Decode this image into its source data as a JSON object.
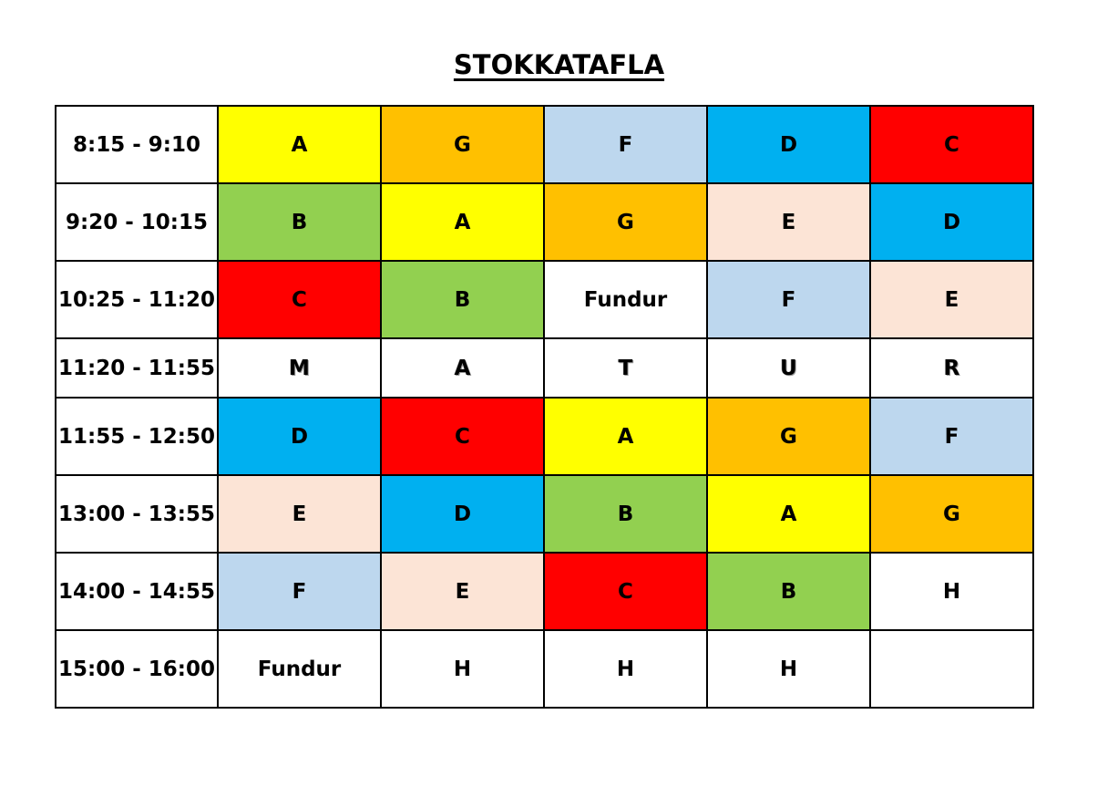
{
  "title": "STOKKATAFLA",
  "colors": {
    "A": "#ffff00",
    "B": "#92d050",
    "C": "#ff0000",
    "D": "#00b0f0",
    "E": "#fce4d6",
    "F": "#bdd7ee",
    "G": "#ffc000",
    "white": "#ffffff"
  },
  "rows": [
    {
      "time": "8:15 - 9:10",
      "cells": [
        {
          "text": "A",
          "color": "#ffff00"
        },
        {
          "text": "G",
          "color": "#ffc000"
        },
        {
          "text": "F",
          "color": "#bdd7ee"
        },
        {
          "text": "D",
          "color": "#00b0f0"
        },
        {
          "text": "C",
          "color": "#ff0000"
        }
      ]
    },
    {
      "time": "9:20 - 10:15",
      "cells": [
        {
          "text": "B",
          "color": "#92d050"
        },
        {
          "text": "A",
          "color": "#ffff00"
        },
        {
          "text": "G",
          "color": "#ffc000"
        },
        {
          "text": "E",
          "color": "#fce4d6"
        },
        {
          "text": "D",
          "color": "#00b0f0"
        }
      ]
    },
    {
      "time": "10:25 - 11:20",
      "cells": [
        {
          "text": "C",
          "color": "#ff0000"
        },
        {
          "text": "B",
          "color": "#92d050"
        },
        {
          "text": "Fundur",
          "color": "#ffffff"
        },
        {
          "text": "F",
          "color": "#bdd7ee"
        },
        {
          "text": "E",
          "color": "#fce4d6"
        }
      ]
    },
    {
      "time": "11:20 - 11:55",
      "lunch": true,
      "cells": [
        {
          "text": "M",
          "color": "#ffffff"
        },
        {
          "text": "A",
          "color": "#ffffff"
        },
        {
          "text": "T",
          "color": "#ffffff"
        },
        {
          "text": "U",
          "color": "#ffffff"
        },
        {
          "text": "R",
          "color": "#ffffff"
        }
      ]
    },
    {
      "time": "11:55 - 12:50",
      "cells": [
        {
          "text": "D",
          "color": "#00b0f0"
        },
        {
          "text": "C",
          "color": "#ff0000"
        },
        {
          "text": "A",
          "color": "#ffff00"
        },
        {
          "text": "G",
          "color": "#ffc000"
        },
        {
          "text": "F",
          "color": "#bdd7ee"
        }
      ]
    },
    {
      "time": "13:00 - 13:55",
      "cells": [
        {
          "text": "E",
          "color": "#fce4d6"
        },
        {
          "text": "D",
          "color": "#00b0f0"
        },
        {
          "text": "B",
          "color": "#92d050"
        },
        {
          "text": "A",
          "color": "#ffff00"
        },
        {
          "text": "G",
          "color": "#ffc000"
        }
      ]
    },
    {
      "time": "14:00 - 14:55",
      "cells": [
        {
          "text": "F",
          "color": "#bdd7ee"
        },
        {
          "text": "E",
          "color": "#fce4d6"
        },
        {
          "text": "C",
          "color": "#ff0000"
        },
        {
          "text": "B",
          "color": "#92d050"
        },
        {
          "text": "H",
          "color": "#ffffff",
          "muted": true
        }
      ]
    },
    {
      "time": "15:00 - 16:00",
      "cells": [
        {
          "text": "Fundur",
          "color": "#ffffff"
        },
        {
          "text": "H",
          "color": "#ffffff",
          "muted": true
        },
        {
          "text": "H",
          "color": "#ffffff",
          "muted": true
        },
        {
          "text": "H",
          "color": "#ffffff",
          "muted": true
        },
        {
          "text": "",
          "color": "#ffffff"
        }
      ]
    }
  ]
}
